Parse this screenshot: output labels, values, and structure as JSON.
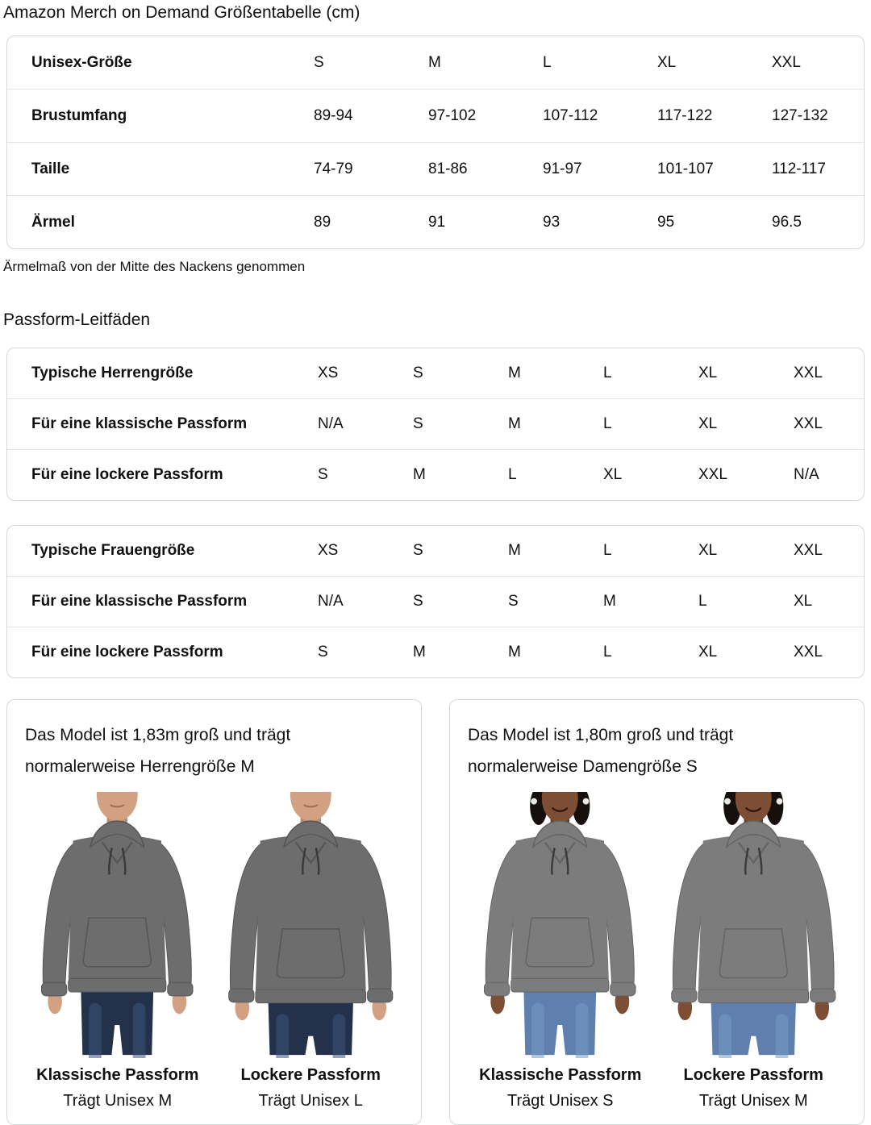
{
  "page": {
    "title": "Amazon Merch on Demand Größentabelle (cm)"
  },
  "size_table": {
    "header": {
      "label": "Unisex-Größe",
      "cols": [
        "S",
        "M",
        "L",
        "XL",
        "XXL"
      ]
    },
    "rows": [
      {
        "label": "Brustumfang",
        "values": [
          "89-94",
          "97-102",
          "107-112",
          "117-122",
          "127-132"
        ]
      },
      {
        "label": "Taille",
        "values": [
          "74-79",
          "81-86",
          "91-97",
          "101-107",
          "112-117"
        ]
      },
      {
        "label": "Ärmel",
        "values": [
          "89",
          "91",
          "93",
          "95",
          "96.5"
        ]
      }
    ],
    "footnote": "Ärmelmaß von der Mitte des Nackens genommen"
  },
  "fit_guides": {
    "heading": "Passform-Leitfäden",
    "men": {
      "rows": [
        {
          "label": "Typische Herrengröße",
          "values": [
            "XS",
            "S",
            "M",
            "L",
            "XL",
            "XXL"
          ]
        },
        {
          "label": "Für eine klassische Passform",
          "values": [
            "N/A",
            "S",
            "M",
            "L",
            "XL",
            "XXL"
          ]
        },
        {
          "label": "Für eine lockere Passform",
          "values": [
            "S",
            "M",
            "L",
            "XL",
            "XXL",
            "N/A"
          ]
        }
      ]
    },
    "women": {
      "rows": [
        {
          "label": "Typische Frauengröße",
          "values": [
            "XS",
            "S",
            "M",
            "L",
            "XL",
            "XXL"
          ]
        },
        {
          "label": "Für eine klassische Passform",
          "values": [
            "N/A",
            "S",
            "S",
            "M",
            "L",
            "XL"
          ]
        },
        {
          "label": "Für eine lockere Passform",
          "values": [
            "S",
            "M",
            "M",
            "L",
            "XL",
            "XXL"
          ]
        }
      ]
    }
  },
  "model_cards": [
    {
      "description": "Das Model ist 1,83m groß und trägt normalerweise Herrengröße M",
      "figures": [
        {
          "fit_label": "Klassische Passform",
          "size_label": "Trägt Unisex M",
          "variant": "male",
          "loose": false
        },
        {
          "fit_label": "Lockere Passform",
          "size_label": "Trägt Unisex L",
          "variant": "male",
          "loose": true
        }
      ]
    },
    {
      "description": "Das Model ist 1,80m groß und trägt normalerweise Damengröße S",
      "figures": [
        {
          "fit_label": "Klassische Passform",
          "size_label": "Trägt Unisex S",
          "variant": "female",
          "loose": false
        },
        {
          "fit_label": "Lockere Passform",
          "size_label": "Trägt Unisex M",
          "variant": "female",
          "loose": true
        }
      ]
    }
  ],
  "colors": {
    "text": "#0F1111",
    "card_border": "#D5D9D9",
    "row_divider": "#E3E6E6",
    "hoodie_gray_male": "#6D6D6D",
    "hoodie_gray_female": "#7C7C7C",
    "hoodie_shade_male": "#565656",
    "hoodie_shade_female": "#646464",
    "jeans_dark_male": "#23314B",
    "jeans_wash_male": "#3C567E",
    "jeans_base_female": "#5F80AE",
    "jeans_wash_female": "#7799C5",
    "skin_male": "#D2A184",
    "skin_shadow_male": "#B98A6D",
    "skin_female": "#7D4E34",
    "skin_shadow_female": "#5F3C28",
    "hair_female": "#15100D"
  }
}
